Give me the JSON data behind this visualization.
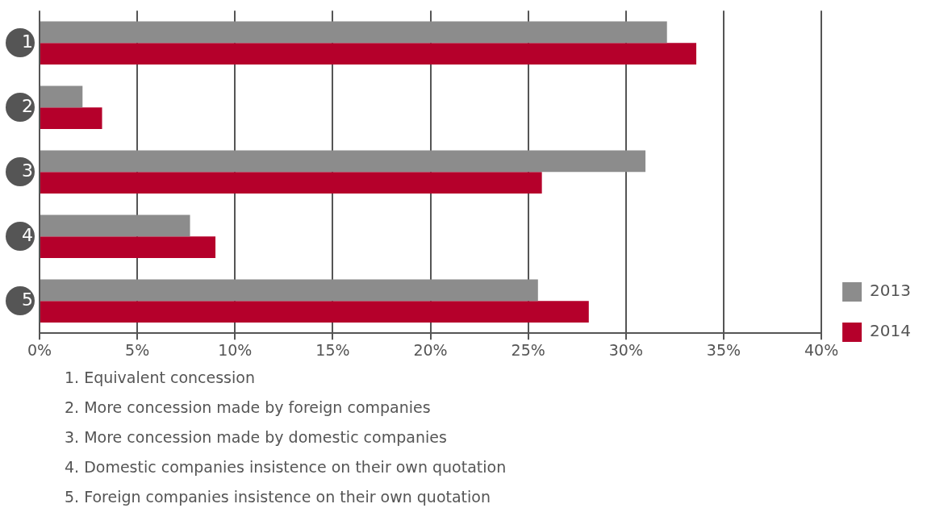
{
  "chart_data": {
    "type": "bar",
    "orientation": "horizontal",
    "categories": [
      "1",
      "2",
      "3",
      "4",
      "5"
    ],
    "series": [
      {
        "name": "2013",
        "color": "#8c8c8c",
        "values": [
          32.1,
          2.2,
          31.0,
          7.7,
          25.5
        ]
      },
      {
        "name": "2014",
        "color": "#b5002b",
        "values": [
          33.6,
          3.2,
          25.7,
          9.0,
          28.1
        ]
      }
    ],
    "xlim": [
      0,
      40
    ],
    "xticks": [
      {
        "value": 0,
        "label": "0%"
      },
      {
        "value": 5,
        "label": "5%"
      },
      {
        "value": 10,
        "label": "10%"
      },
      {
        "value": 15,
        "label": "15%"
      },
      {
        "value": 20,
        "label": "20%"
      },
      {
        "value": 25,
        "label": "25%"
      },
      {
        "value": 30,
        "label": "30%"
      },
      {
        "value": 35,
        "label": "35%"
      },
      {
        "value": 40,
        "label": "40%"
      }
    ],
    "grid": "x",
    "legend": "bottom right",
    "annotations": [
      "1. Equivalent concession",
      "2. More concession made by foreign companies",
      "3. More concession made by domestic companies",
      "4. Domestic companies insistence on their own quotation",
      "5. Foreign companies insistence on their own quotation"
    ]
  }
}
